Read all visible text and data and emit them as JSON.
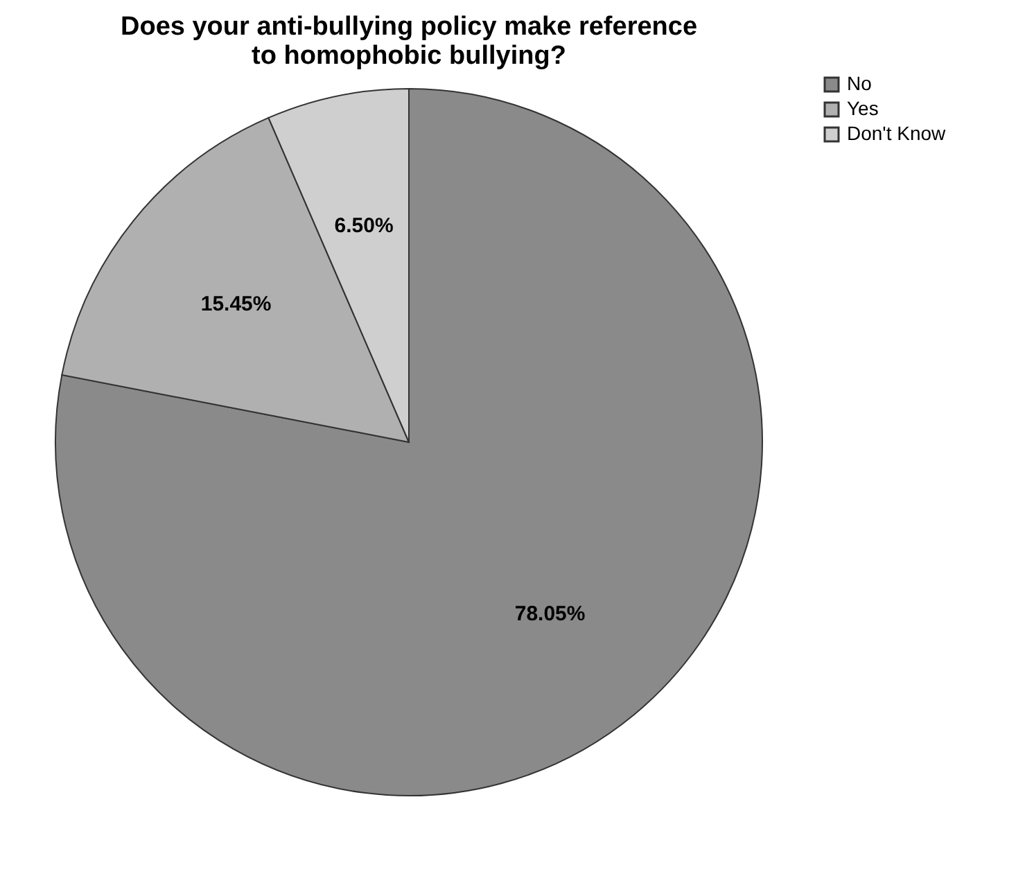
{
  "chart_data": {
    "type": "pie",
    "title": "Does your anti-bullying policy make reference to homophobic bullying?",
    "categories": [
      "No",
      "Yes",
      "Don't Know"
    ],
    "values": [
      78.05,
      15.45,
      6.5
    ],
    "value_labels": [
      "78.05%",
      "15.45%",
      "6.50%"
    ],
    "colors": [
      "#8a8a8a",
      "#b0b0b0",
      "#cfcfcf"
    ],
    "legend": "top right"
  }
}
